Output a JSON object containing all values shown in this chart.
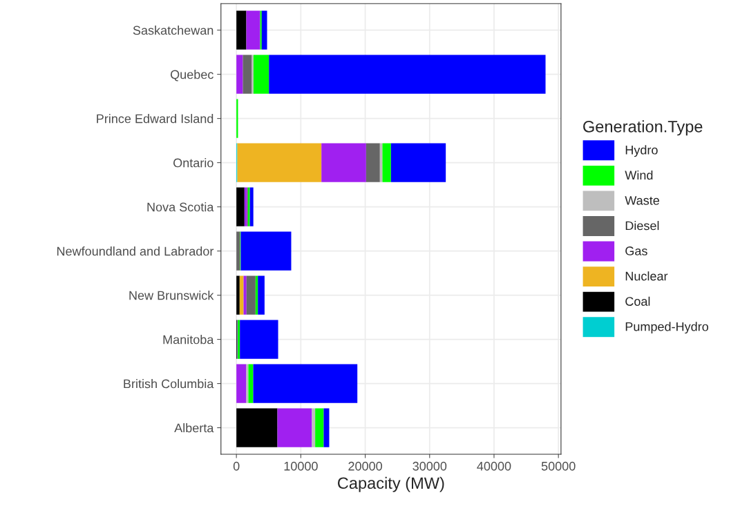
{
  "chart_data": {
    "type": "bar",
    "orientation": "horizontal",
    "stacked": true,
    "categories": [
      "Saskatchewan",
      "Quebec",
      "Prince Edward Island",
      "Ontario",
      "Nova Scotia",
      "Newfoundland and Labrador",
      "New Brunswick",
      "Manitoba",
      "British Columbia",
      "Alberta"
    ],
    "series": [
      {
        "name": "Pumped-Hydro",
        "color": "#00ced1",
        "values": [
          0,
          0,
          0,
          140,
          0,
          0,
          0,
          0,
          0,
          0
        ]
      },
      {
        "name": "Coal",
        "color": "#000000",
        "values": [
          1540,
          0,
          0,
          0,
          1250,
          0,
          500,
          100,
          0,
          6370
        ]
      },
      {
        "name": "Nuclear",
        "color": "#eeb422",
        "values": [
          0,
          0,
          0,
          13060,
          0,
          0,
          610,
          0,
          0,
          0
        ]
      },
      {
        "name": "Gas",
        "color": "#a020f0",
        "values": [
          2150,
          1000,
          0,
          6940,
          400,
          0,
          460,
          80,
          1540,
          5360
        ]
      },
      {
        "name": "Diesel",
        "color": "#666666",
        "values": [
          0,
          1400,
          0,
          2140,
          150,
          570,
          1400,
          0,
          0,
          0
        ]
      },
      {
        "name": "Waste",
        "color": "#bebebe",
        "values": [
          0,
          250,
          0,
          390,
          0,
          0,
          0,
          0,
          320,
          500
        ]
      },
      {
        "name": "Wind",
        "color": "#00ff00",
        "values": [
          240,
          2400,
          250,
          1330,
          290,
          100,
          360,
          360,
          750,
          1320
        ]
      },
      {
        "name": "Hydro",
        "color": "#0000ff",
        "values": [
          830,
          42950,
          0,
          8510,
          540,
          7840,
          1040,
          5940,
          16170,
          860
        ]
      }
    ],
    "xlabel": "Capacity (MW)",
    "legend_title": "Generation.Type",
    "legend": "right",
    "grid": true,
    "xlim": [
      -2400,
      50400
    ],
    "xticks": [
      0,
      10000,
      20000,
      30000,
      40000,
      50000
    ]
  }
}
